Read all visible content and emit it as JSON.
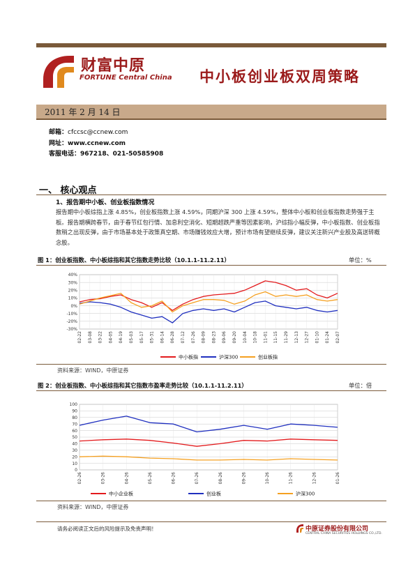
{
  "header": {
    "logo_cn": "财富中原",
    "logo_en": "FORTUNE Central China",
    "title": "中小板创业板双周策略",
    "date": "2011 年 2 月 14 日"
  },
  "contact": {
    "email_label": "邮箱：",
    "email": "cfccsc@ccnew.com",
    "site_label": "网址：",
    "site": "www.ccnew.com",
    "phone_label": "客服电话：",
    "phone": "967218、021-50585908"
  },
  "section": {
    "title": "一、 核心观点",
    "subtitle": "1、报告期中小板、创业板指数情况",
    "paragraph": "报告期中小板综指上涨 4.85%，创业板指数上涨 4.59%，同期沪深 300 上涨 4.59%，整体中小板和创业板指数走势强于主板。报告期横跨春节，由于春节红包行情、加息利空消化、短期超跌严重等因素影响，沪综指小幅反弹，中小板指数、创业板指数稍之出现反弹，由于市场基本处于政策真空期、市场赚钱效应大增，预计市场有望继续反弹，建议关注新兴产业股及高送转概念股。"
  },
  "figure1": {
    "title": "图 1：创业板指数、中小板综指和其它指数走势比较（10.1.1-11.2.11）",
    "unit": "单位：%",
    "source": "资料来源：WIND，中原证券"
  },
  "figure2": {
    "title": "图 2：创业板指数、中小板综指和其它指数市盈率走势比较（10.1.1-11.2.11）",
    "unit": "单位：倍",
    "source": "资料来源：WIND，中原证券"
  },
  "footer": {
    "disclaimer": "请务必阅读正文后的风险提示及免责声明！",
    "company_cn": "中原证券股份有限公司",
    "company_en": "CENTRAL CHINA SECURITIES HOLDINGS CO.,LTD."
  },
  "chart_data": [
    {
      "type": "line",
      "ylim": [
        -30,
        40
      ],
      "yticks": [
        -30,
        -20,
        -10,
        0,
        10,
        20,
        30,
        40
      ],
      "ytick_labels": [
        "-30%",
        "-20%",
        "-10%",
        "0%",
        "10%",
        "20%",
        "30%",
        "40%"
      ],
      "categories": [
        "02-22",
        "03-08",
        "03-22",
        "04-05",
        "04-19",
        "05-03",
        "05-17",
        "05-31",
        "06-14",
        "06-28",
        "07-12",
        "07-26",
        "08-09",
        "08-23",
        "09-06",
        "09-20",
        "10-04",
        "10-18",
        "11-01",
        "11-15",
        "11-29",
        "12-13",
        "12-27",
        "01-10",
        "01-24",
        "02-07"
      ],
      "grid": true,
      "legend": "bottom",
      "colors": [
        "#e31a1c",
        "#1f2fbf",
        "#f5a020"
      ],
      "series": [
        {
          "name": "中小板指",
          "values": [
            5,
            8,
            9,
            12,
            14,
            8,
            4,
            -2,
            4,
            -6,
            2,
            8,
            12,
            14,
            15,
            16,
            20,
            26,
            32,
            30,
            26,
            20,
            22,
            14,
            10,
            16
          ]
        },
        {
          "name": "沪深300",
          "values": [
            3,
            5,
            4,
            2,
            -2,
            -8,
            -12,
            -16,
            -14,
            -22,
            -10,
            -6,
            -4,
            -6,
            -4,
            -8,
            -2,
            4,
            6,
            0,
            -2,
            -4,
            -2,
            -6,
            -8,
            -6
          ]
        },
        {
          "name": "创业板指",
          "values": [
            2,
            6,
            10,
            13,
            16,
            4,
            -2,
            0,
            6,
            -8,
            0,
            4,
            8,
            8,
            7,
            2,
            6,
            14,
            18,
            12,
            14,
            12,
            14,
            8,
            6,
            8
          ]
        }
      ]
    },
    {
      "type": "line",
      "ylim": [
        0,
        100
      ],
      "yticks": [
        0,
        10,
        20,
        30,
        40,
        50,
        60,
        70,
        80,
        90,
        100
      ],
      "ytick_labels": [
        "0",
        "10",
        "20",
        "30",
        "40",
        "50",
        "60",
        "70",
        "80",
        "90",
        "100"
      ],
      "categories": [
        "02-26",
        "03-26",
        "04-26",
        "05-26",
        "06-26",
        "07-26",
        "08-26",
        "09-26",
        "10-26",
        "11-26",
        "12-26",
        "01-26"
      ],
      "grid": true,
      "legend": "bottom",
      "colors": [
        "#e31a1c",
        "#1f2fbf",
        "#f5a020"
      ],
      "series": [
        {
          "name": "中小企业板",
          "values": [
            44,
            46,
            47,
            45,
            41,
            36,
            40,
            45,
            44,
            47,
            46,
            45
          ]
        },
        {
          "name": "创业板",
          "values": [
            68,
            76,
            82,
            72,
            70,
            58,
            62,
            68,
            62,
            70,
            68,
            65
          ]
        },
        {
          "name": "沪深300",
          "values": [
            20,
            21,
            20,
            18,
            17,
            15,
            15,
            16,
            15,
            17,
            16,
            15
          ]
        }
      ]
    }
  ]
}
